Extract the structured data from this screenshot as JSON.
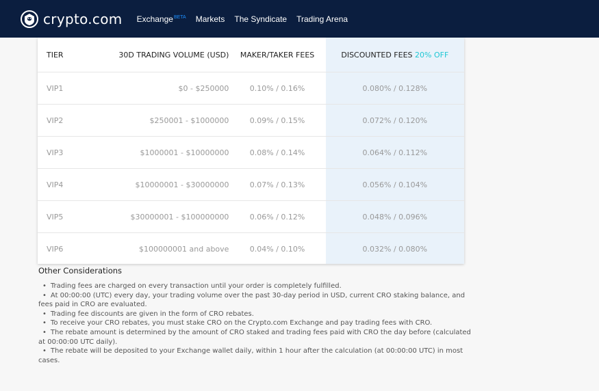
{
  "brand": {
    "name": "crypto.com",
    "logo_icon": "crypto-com-lion-shield-icon"
  },
  "nav": {
    "items": [
      {
        "label": "Exchange",
        "badge": "BETA"
      },
      {
        "label": "Markets"
      },
      {
        "label": "The Syndicate"
      },
      {
        "label": "Trading Arena"
      }
    ]
  },
  "table": {
    "headers": {
      "tier": "TIER",
      "volume": "30D TRADING VOLUME (USD)",
      "fees": "MAKER/TAKER FEES",
      "discounted": "DISCOUNTED FEES",
      "discount_badge": "20% OFF"
    },
    "rows": [
      {
        "tier": "VIP1",
        "volume": "$0 - $250000",
        "fees": "0.10% / 0.16%",
        "discounted": "0.080% / 0.128%"
      },
      {
        "tier": "VIP2",
        "volume": "$250001 - $1000000",
        "fees": "0.09% / 0.15%",
        "discounted": "0.072% / 0.120%"
      },
      {
        "tier": "VIP3",
        "volume": "$1000001 - $10000000",
        "fees": "0.08% / 0.14%",
        "discounted": "0.064% / 0.112%"
      },
      {
        "tier": "VIP4",
        "volume": "$10000001 - $30000000",
        "fees": "0.07% / 0.13%",
        "discounted": "0.056% / 0.104%"
      },
      {
        "tier": "VIP5",
        "volume": "$30000001 - $100000000",
        "fees": "0.06% / 0.12%",
        "discounted": "0.048% / 0.096%"
      },
      {
        "tier": "VIP6",
        "volume": "$100000001 and above",
        "fees": "0.04% / 0.10%",
        "discounted": "0.032% / 0.080%"
      }
    ]
  },
  "considerations": {
    "title": "Other Considerations",
    "items": [
      "Trading fees are charged on every transaction until your order is completely fulfilled.",
      "At 00:00:00 (UTC) every day, your trading volume over the past 30-day period in USD, current CRO staking balance, and fees paid in CRO are evaluated.",
      "Trading fee discounts are given in the form of CRO rebates.",
      "To receive your CRO rebates, you must stake CRO on the Crypto.com Exchange and pay trading fees with CRO.",
      "The rebate amount is determined by the amount of CRO staked and trading fees paid with CRO the day before (calculated at 00:00:00 UTC daily).",
      "The rebate will be deposited to your Exchange wallet daily, within 1 hour after the calculation (at 00:00:00 UTC) in most cases."
    ]
  },
  "colors": {
    "nav_background": "#0b1e3f",
    "discount_column_bg": "#e9f2fa",
    "discount_accent": "#1fc7d4",
    "beta_accent": "#1e90ff"
  }
}
